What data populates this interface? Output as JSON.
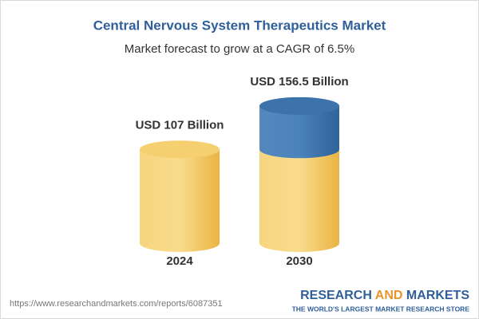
{
  "chart_data": {
    "type": "bar",
    "title": "Central Nervous System Therapeutics Market",
    "subtitle": "Market forecast to grow at a CAGR of 6.5%",
    "categories": [
      "2024",
      "2030"
    ],
    "values": [
      107,
      156.5
    ],
    "value_labels": [
      "USD 107 Billion",
      "USD 156.5 Billion"
    ],
    "color": "#f3c25a",
    "growth_color": "#3d76ad"
  },
  "footer": {
    "url": "https://www.researchandmarkets.com/reports/6087351",
    "brand": [
      "RESEARCH",
      "AND",
      "MARKETS"
    ],
    "tagline": "THE WORLD'S LARGEST MARKET RESEARCH STORE"
  }
}
